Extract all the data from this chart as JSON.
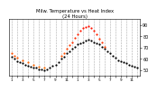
{
  "title": "Milw. Temperature vs Heat Index\n(24 Hours)",
  "bg_color": "#ffffff",
  "grid_color": "#aaaaaa",
  "temp_data": [
    [
      0,
      62
    ],
    [
      0.5,
      60
    ],
    [
      1,
      58
    ],
    [
      1.5,
      57
    ],
    [
      2,
      56
    ],
    [
      2.5,
      55
    ],
    [
      3,
      54
    ],
    [
      3.5,
      53
    ],
    [
      4,
      52
    ],
    [
      4.5,
      52
    ],
    [
      5,
      51
    ],
    [
      5.5,
      51
    ],
    [
      6,
      50
    ],
    [
      6.5,
      51
    ],
    [
      7,
      52
    ],
    [
      7.5,
      54
    ],
    [
      8,
      55
    ],
    [
      8.5,
      57
    ],
    [
      9,
      60
    ],
    [
      9.5,
      62
    ],
    [
      10,
      65
    ],
    [
      10.5,
      67
    ],
    [
      11,
      69
    ],
    [
      11.5,
      71
    ],
    [
      12,
      73
    ],
    [
      12.5,
      74
    ],
    [
      13,
      75
    ],
    [
      13.5,
      76
    ],
    [
      14,
      77
    ],
    [
      14.5,
      76
    ],
    [
      15,
      75
    ],
    [
      15.5,
      74
    ],
    [
      16,
      73
    ],
    [
      16.5,
      71
    ],
    [
      17,
      69
    ],
    [
      17.5,
      67
    ],
    [
      18,
      65
    ],
    [
      18.5,
      63
    ],
    [
      19,
      61
    ],
    [
      19.5,
      59
    ],
    [
      20,
      58
    ],
    [
      20.5,
      57
    ],
    [
      21,
      56
    ],
    [
      21.5,
      55
    ],
    [
      22,
      54
    ],
    [
      22.5,
      53
    ],
    [
      23,
      52
    ]
  ],
  "heat_data": [
    [
      9,
      63
    ],
    [
      9.5,
      65
    ],
    [
      10,
      69
    ],
    [
      10.5,
      72
    ],
    [
      11,
      75
    ],
    [
      11.5,
      79
    ],
    [
      12,
      82
    ],
    [
      12.5,
      85
    ],
    [
      13,
      87
    ],
    [
      13.5,
      88
    ],
    [
      14,
      89
    ],
    [
      14.5,
      87
    ],
    [
      15,
      85
    ],
    [
      15.5,
      82
    ],
    [
      16,
      78
    ],
    [
      16.5,
      75
    ],
    [
      17,
      71
    ],
    [
      0,
      65
    ],
    [
      0.5,
      63
    ],
    [
      1,
      61
    ],
    [
      2,
      59
    ],
    [
      3,
      57
    ],
    [
      4,
      55
    ],
    [
      5,
      53
    ],
    [
      6,
      52
    ]
  ],
  "temp_color": "#000000",
  "ylim": [
    45,
    95
  ],
  "xlim": [
    -0.5,
    23.5
  ],
  "grid_x": [
    0,
    1,
    2,
    3,
    4,
    5,
    6,
    7,
    8,
    9,
    10,
    11,
    12,
    13,
    14,
    15,
    16,
    17,
    18,
    19,
    20,
    21,
    22,
    23
  ],
  "y_ticks": [
    50,
    60,
    70,
    80,
    90
  ],
  "x_tick_positions": [
    0,
    1,
    2,
    3,
    4,
    5,
    6,
    7,
    8,
    9,
    10,
    11,
    12,
    13,
    14,
    15,
    16,
    17,
    18,
    19,
    20,
    21,
    22,
    23
  ],
  "x_tick_labels": [
    "1",
    "",
    "3",
    "",
    "5",
    "",
    "7",
    "",
    "9",
    "",
    "11",
    "",
    "1",
    "",
    "3",
    "",
    "5",
    "",
    "7",
    "",
    "9",
    "",
    "11",
    ""
  ],
  "marker_size": 2.5
}
